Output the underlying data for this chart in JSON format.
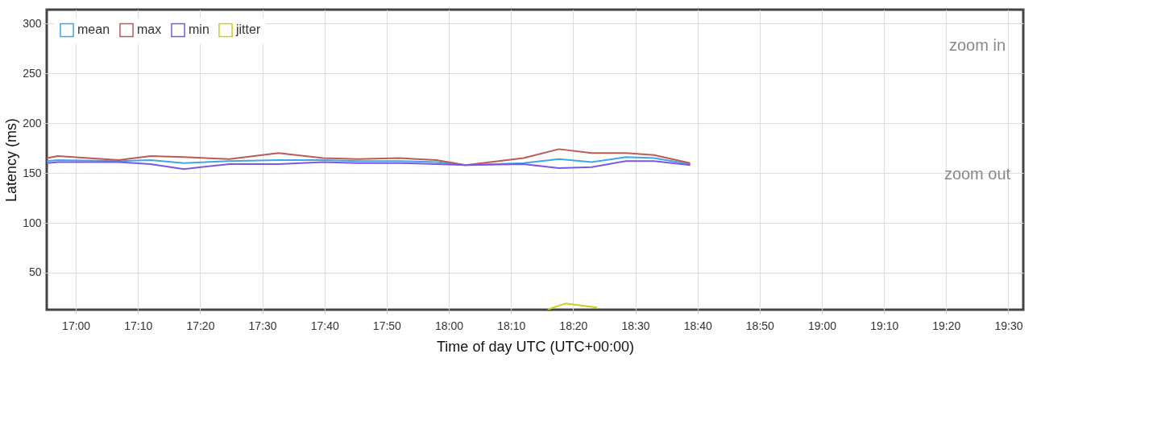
{
  "chart_data": {
    "type": "line",
    "xlabel": "Time of day UTC (UTC+00:00)",
    "ylabel": "Latency (ms)",
    "xlim": [
      16.922,
      19.54
    ],
    "ylim": [
      12.8,
      314
    ],
    "xticks": [
      {
        "value": 17,
        "label": "17:00"
      },
      {
        "value": 17.1667,
        "label": "17:10"
      },
      {
        "value": 17.3333,
        "label": "17:20"
      },
      {
        "value": 17.5,
        "label": "17:30"
      },
      {
        "value": 17.6667,
        "label": "17:40"
      },
      {
        "value": 17.8333,
        "label": "17:50"
      },
      {
        "value": 18,
        "label": "18:00"
      },
      {
        "value": 18.1667,
        "label": "18:10"
      },
      {
        "value": 18.3333,
        "label": "18:20"
      },
      {
        "value": 18.5,
        "label": "18:30"
      },
      {
        "value": 18.6667,
        "label": "18:40"
      },
      {
        "value": 18.8333,
        "label": "18:50"
      },
      {
        "value": 19,
        "label": "19:00"
      },
      {
        "value": 19.1667,
        "label": "19:10"
      },
      {
        "value": 19.3333,
        "label": "19:20"
      },
      {
        "value": 19.5,
        "label": "19:30"
      }
    ],
    "yticks": [
      50,
      100,
      150,
      200,
      250,
      300
    ],
    "x": [
      16.922,
      16.952,
      17.115,
      17.2,
      17.29,
      17.412,
      17.543,
      17.663,
      17.755,
      17.867,
      17.967,
      18.045,
      18.2,
      18.295,
      18.383,
      18.475,
      18.55,
      18.647
    ],
    "series": [
      {
        "name": "mean",
        "color": "#3ea6e8",
        "values": [
          162,
          163,
          162,
          163,
          160,
          162,
          163,
          163,
          162,
          162,
          161,
          158,
          160,
          164,
          161,
          166,
          165,
          159
        ]
      },
      {
        "name": "max",
        "color": "#bd5a55",
        "values": [
          165,
          167,
          163,
          167,
          166,
          164,
          170,
          165,
          164,
          165,
          163,
          158,
          165,
          174,
          170,
          170,
          168,
          160
        ]
      },
      {
        "name": "min",
        "color": "#7b57e8",
        "values": [
          160,
          161,
          161,
          159,
          154,
          159,
          159,
          161,
          160,
          160,
          159,
          158,
          159,
          155,
          156,
          162,
          162,
          158
        ]
      },
      {
        "name": "jitter",
        "color": "#c8d020",
        "x": [
          18.265,
          18.312,
          18.397
        ],
        "values": [
          13,
          19,
          15
        ]
      }
    ],
    "grid": true,
    "legend": "top left",
    "marker": "none",
    "line_style": "solid",
    "annotations": [
      "zoom in",
      "zoom out"
    ]
  }
}
